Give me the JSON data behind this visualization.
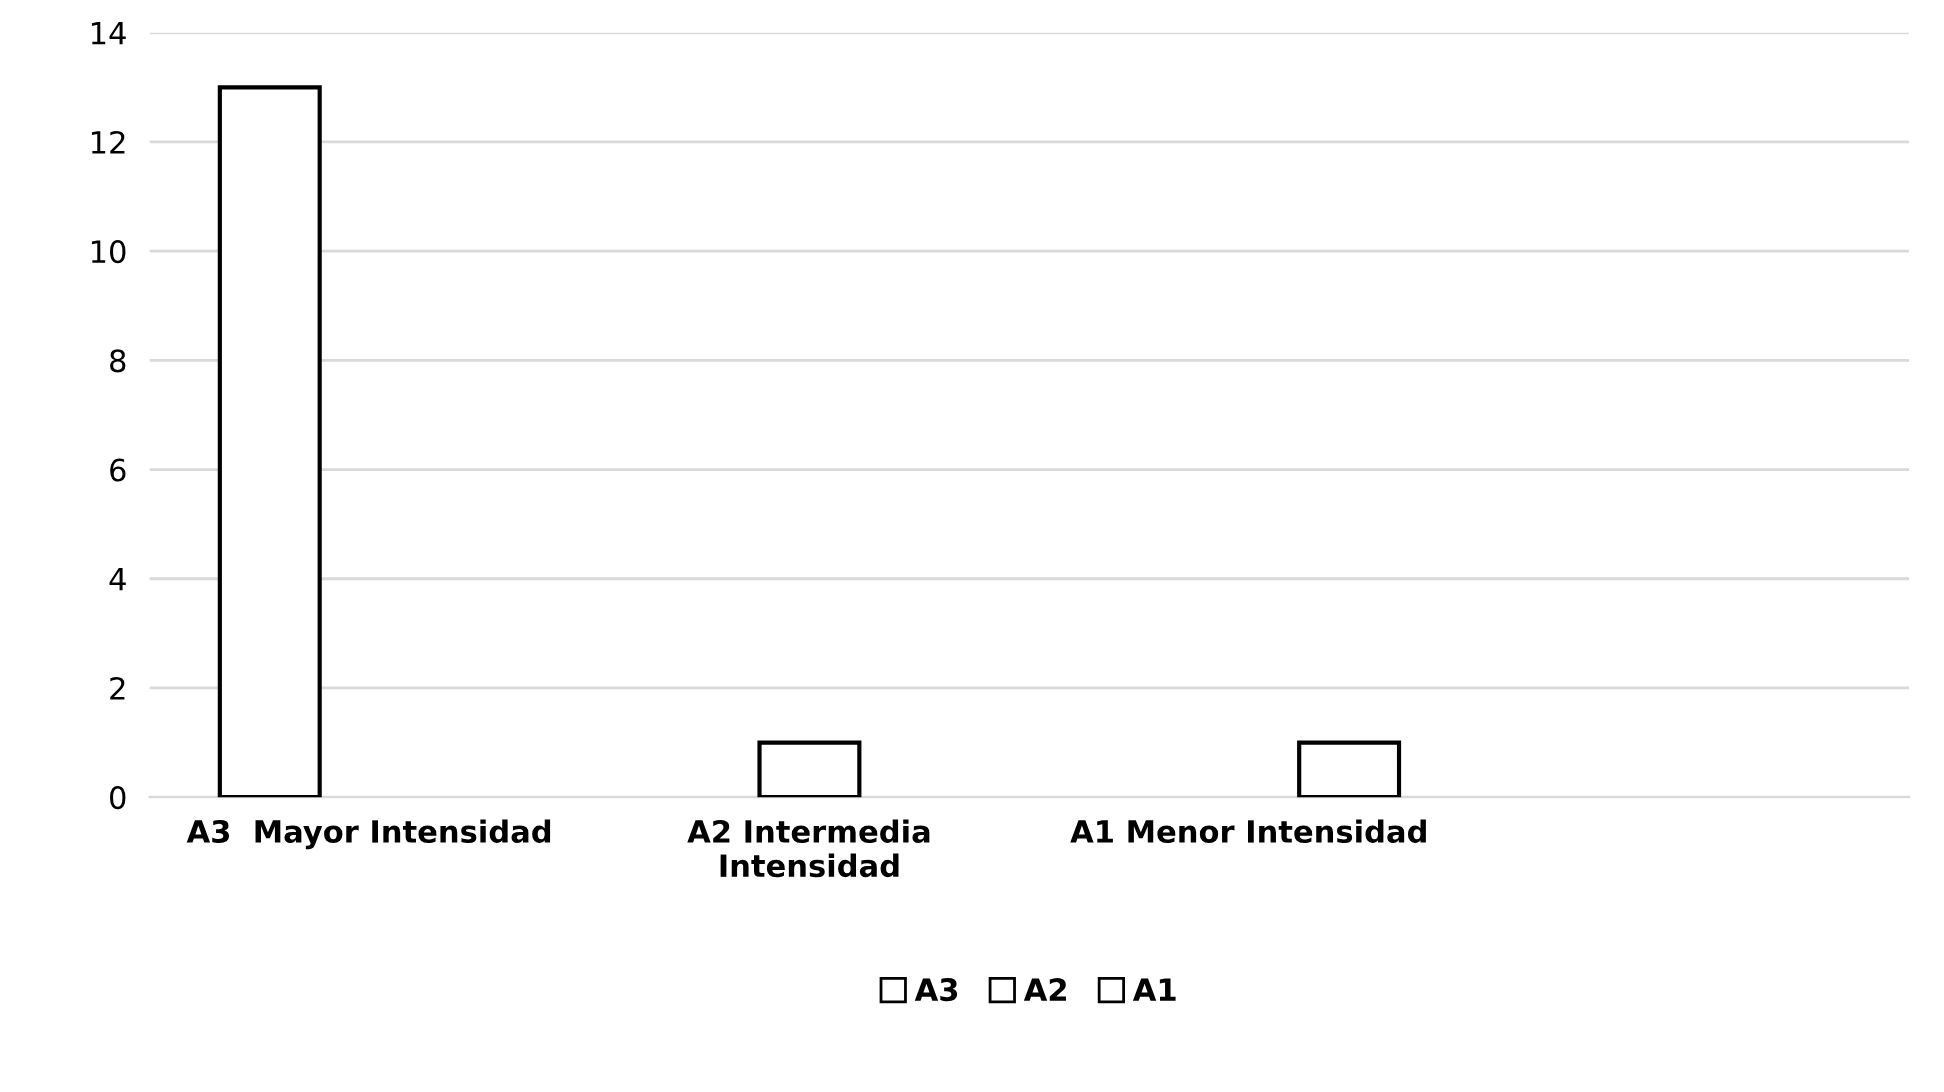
{
  "chart_data": {
    "type": "bar",
    "categories": [
      "A3  Mayor Intensidad",
      "A2 Intermedia\nIntensidad",
      "A1 Menor Intensidad",
      null
    ],
    "series": [
      {
        "name": "A3",
        "color": "#ffffff",
        "values": [
          13,
          null,
          null,
          null
        ]
      },
      {
        "name": "A2",
        "color": "#ffffff",
        "values": [
          null,
          1,
          null,
          null
        ]
      },
      {
        "name": "A1",
        "color": "#ffffff",
        "values": [
          null,
          null,
          1,
          null
        ]
      }
    ],
    "ylim": [
      0,
      14
    ],
    "yticks": [
      0,
      2,
      4,
      6,
      8,
      10,
      12,
      14
    ],
    "grid": "y",
    "legend": "bottom"
  }
}
